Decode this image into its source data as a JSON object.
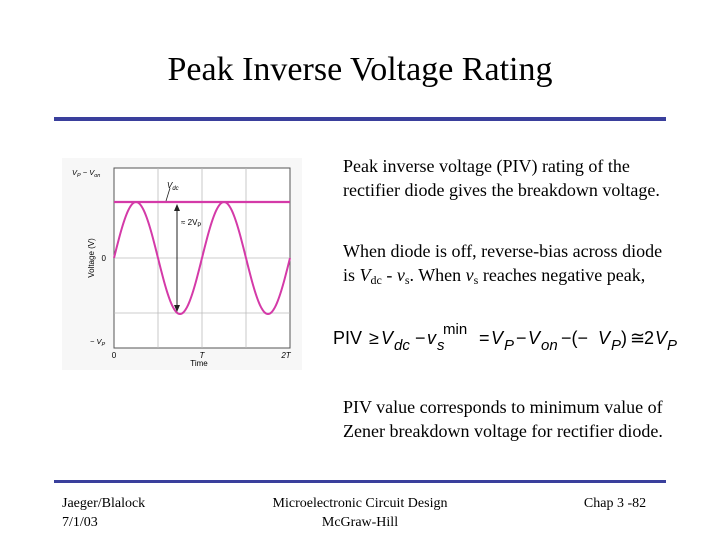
{
  "slide": {
    "title": "Peak Inverse Voltage Rating"
  },
  "body": {
    "para1": "Peak inverse voltage (PIV) rating of the rectifier diode gives the breakdown voltage.",
    "para2": {
      "prefix": "When diode is off, reverse-bias across diode is ",
      "vdc_symbol": "V",
      "vdc_sub": "dc",
      "minus": " - ",
      "vs_symbol": "v",
      "vs_sub": "s",
      "middle": ". When ",
      "vs_symbol2": "v",
      "vs_sub2": "s",
      "suffix": " reaches negative peak,"
    },
    "equation": {
      "piv": "PIV",
      "geq": "≥",
      "v1": "V",
      "v1_sub": "dc",
      "minus1": "−",
      "v2": "v",
      "v2_sub": "s",
      "v2_sup": "min",
      "eq": "=",
      "v3": "V",
      "v3_sub": "P",
      "minus2": "−",
      "v4": "V",
      "v4_sub": "on",
      "minus3": "−(−",
      "v5": "V",
      "v5_sub": "P",
      "close": ")",
      "approx": "≅",
      "two": "2",
      "v6": "V",
      "v6_sub": "P"
    },
    "para3": "PIV value corresponds to minimum value of Zener breakdown voltage for rectifier diode."
  },
  "figure": {
    "ylabel": "Voltage (V)",
    "xlabel": "Time",
    "y_top_label_main": "V",
    "y_top_label_sub1": "P",
    "y_top_label_mid": " − V",
    "y_top_label_sub2": "on",
    "y_zero": "0",
    "y_bottom_label_main": "− V",
    "y_bottom_label_sub": "P",
    "x_zero": "0",
    "x_T": "T",
    "x_2T": "2T",
    "vdc_main": "V",
    "vdc_sub": "dc",
    "approx_main": "≈ 2V",
    "approx_sub": "P"
  },
  "footer": {
    "left_line1": "Jaeger/Blalock",
    "left_line2": "7/1/03",
    "center_line1": "Microelectronic Circuit Design",
    "center_line2": "McGraw-Hill",
    "right": "Chap 3 -82"
  },
  "colors": {
    "rule": "#3a3f9c",
    "waveform": "#d43aa8"
  }
}
